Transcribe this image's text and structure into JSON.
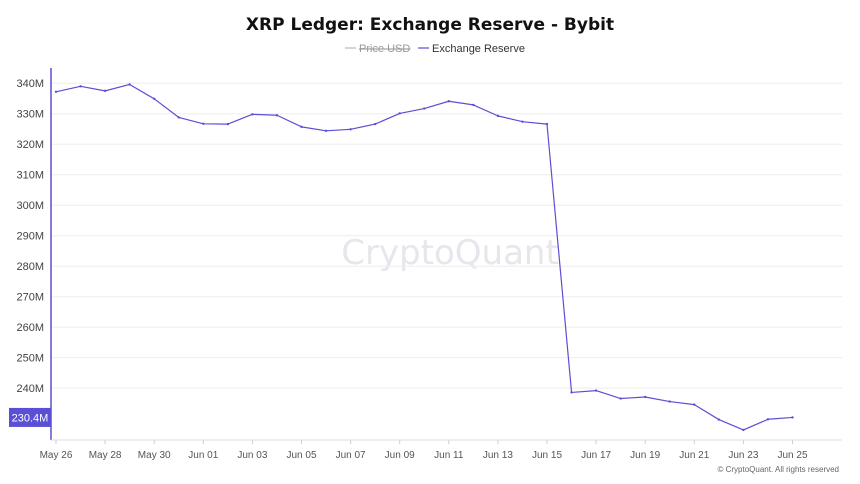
{
  "chart_data": {
    "type": "line",
    "title": "XRP Ledger: Exchange Reserve - Bybit",
    "legend": [
      {
        "name": "Price USD",
        "color": "#aaaaaa",
        "hidden": true
      },
      {
        "name": "Exchange Reserve",
        "color": "#5b4fd6",
        "hidden": false
      }
    ],
    "legend_placement": "top-center",
    "x_tick_labels": [
      "May 26",
      "May 28",
      "May 30",
      "Jun 01",
      "Jun 03",
      "Jun 05",
      "Jun 07",
      "Jun 09",
      "Jun 11",
      "Jun 13",
      "Jun 15",
      "Jun 17",
      "Jun 19",
      "Jun 21",
      "Jun 23",
      "Jun 25"
    ],
    "y_tick_labels": [
      "240M",
      "250M",
      "260M",
      "270M",
      "280M",
      "290M",
      "300M",
      "310M",
      "320M",
      "330M",
      "340M"
    ],
    "ylim": [
      223,
      345
    ],
    "grid": true,
    "series": [
      {
        "name": "Exchange Reserve",
        "color": "#5b4fd6",
        "x": [
          "May 26",
          "May 27",
          "May 28",
          "May 29",
          "May 30",
          "May 31",
          "Jun 01",
          "Jun 02",
          "Jun 03",
          "Jun 04",
          "Jun 05",
          "Jun 06",
          "Jun 07",
          "Jun 08",
          "Jun 09",
          "Jun 10",
          "Jun 11",
          "Jun 12",
          "Jun 13",
          "Jun 14",
          "Jun 15",
          "Jun 16",
          "Jun 17",
          "Jun 18",
          "Jun 19",
          "Jun 20",
          "Jun 21",
          "Jun 22",
          "Jun 23",
          "Jun 24",
          "Jun 25"
        ],
        "values": [
          337.2,
          339.0,
          337.5,
          339.6,
          334.9,
          328.8,
          326.7,
          326.6,
          329.8,
          329.5,
          325.7,
          324.4,
          324.9,
          326.6,
          330.1,
          331.7,
          334.1,
          332.9,
          329.3,
          327.4,
          326.6,
          238.6,
          239.2,
          236.6,
          237.1,
          235.6,
          234.6,
          229.7,
          226.3,
          229.8,
          230.4
        ]
      }
    ],
    "last_value_label": "230.4M",
    "watermark": "CryptoQuant",
    "copyright": "© CryptoQuant. All rights reserved"
  }
}
